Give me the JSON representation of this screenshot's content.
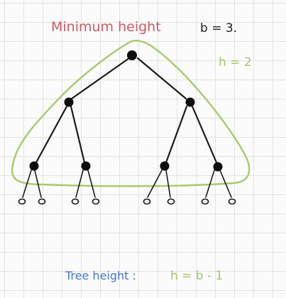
{
  "labels": {
    "title": "Minimum height",
    "branching": "b = 3.",
    "height_value": "h = 2",
    "footer_prefix": "Tree height :",
    "footer_formula": "h = b - 1"
  },
  "colors": {
    "title": "#cc5a68",
    "hull": "#a9c96a",
    "footer_prefix": "#4a74d8",
    "ink": "#1a1a1a"
  },
  "tree": {
    "levels": [
      [
        "n0"
      ],
      [
        "n1",
        "n2"
      ],
      [
        "n3",
        "n4",
        "n5",
        "n6"
      ]
    ],
    "edges": [
      [
        "n0",
        "n1"
      ],
      [
        "n0",
        "n2"
      ],
      [
        "n1",
        "n3"
      ],
      [
        "n1",
        "n4"
      ],
      [
        "n2",
        "n5"
      ],
      [
        "n2",
        "n6"
      ]
    ],
    "leaves_per_bottom_node": 2
  }
}
